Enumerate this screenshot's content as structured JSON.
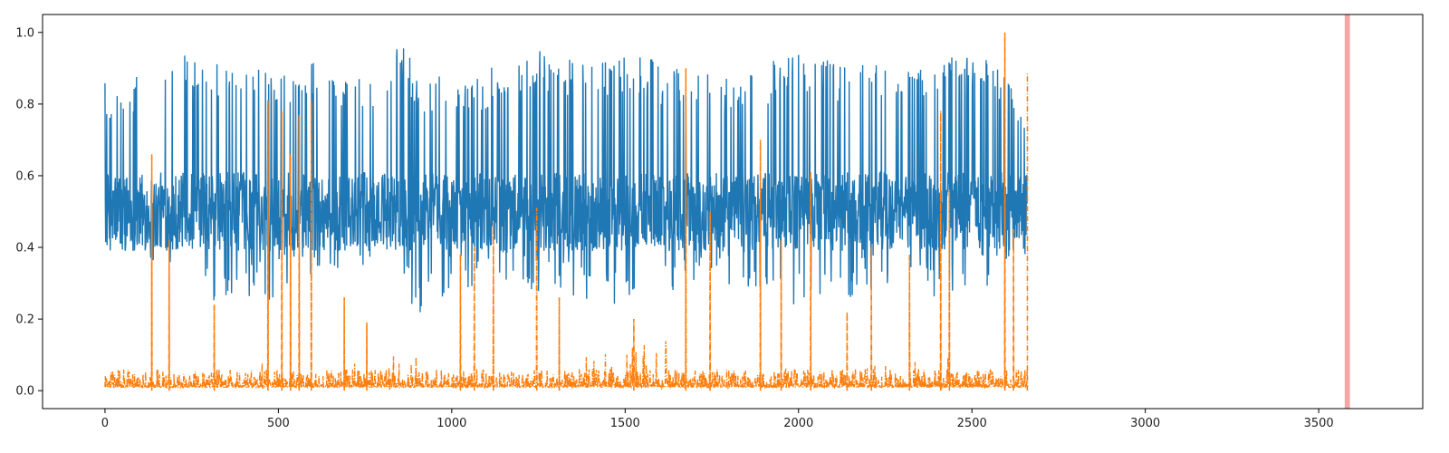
{
  "chart_data": {
    "type": "line",
    "title": "",
    "xlabel": "",
    "ylabel": "",
    "xlim": [
      -180,
      3800
    ],
    "ylim": [
      -0.05,
      1.05
    ],
    "x_ticks": [
      0,
      500,
      1000,
      1500,
      2000,
      2500,
      3000,
      3500
    ],
    "y_ticks": [
      0.0,
      0.2,
      0.4,
      0.6,
      0.8,
      1.0
    ],
    "x_tick_labels": [
      "0",
      "500",
      "1000",
      "1500",
      "2000",
      "2500",
      "3000",
      "3500"
    ],
    "y_tick_labels": [
      "0.0",
      "0.2",
      "0.4",
      "0.6",
      "0.8",
      "1.0"
    ],
    "grid": false,
    "legend": "none",
    "series": [
      {
        "color": "#1f77b4",
        "style": "solid",
        "n_points": 2660,
        "baseline": 0.5,
        "x": [
          0,
          100,
          200,
          300,
          400,
          500,
          600,
          700,
          800,
          840,
          900,
          1000,
          1100,
          1200,
          1300,
          1400,
          1500,
          1600,
          1700,
          1800,
          1900,
          2000,
          2100,
          2200,
          2300,
          2400,
          2500,
          2600,
          2660
        ],
        "upper": [
          0.86,
          0.89,
          0.95,
          0.93,
          0.92,
          0.88,
          0.92,
          0.87,
          0.93,
          1.0,
          0.9,
          0.88,
          0.9,
          0.95,
          0.95,
          0.92,
          0.95,
          0.92,
          0.9,
          0.88,
          0.91,
          0.96,
          0.93,
          0.93,
          0.93,
          0.94,
          0.93,
          0.93,
          0.82
        ],
        "lower": [
          0.38,
          0.34,
          0.36,
          0.23,
          0.24,
          0.25,
          0.33,
          0.34,
          0.36,
          0.36,
          0.2,
          0.28,
          0.29,
          0.27,
          0.27,
          0.23,
          0.24,
          0.25,
          0.28,
          0.29,
          0.25,
          0.22,
          0.23,
          0.27,
          0.26,
          0.24,
          0.27,
          0.3,
          0.39
        ]
      },
      {
        "color": "#ff7f0e",
        "style": "dashdot",
        "n_points": 2660,
        "baseline": 0.01,
        "spikes": [
          {
            "x": 135,
            "y": 0.66
          },
          {
            "x": 185,
            "y": 0.42
          },
          {
            "x": 315,
            "y": 0.24
          },
          {
            "x": 470,
            "y": 0.81
          },
          {
            "x": 510,
            "y": 0.78
          },
          {
            "x": 535,
            "y": 0.66
          },
          {
            "x": 560,
            "y": 0.77
          },
          {
            "x": 595,
            "y": 0.81
          },
          {
            "x": 690,
            "y": 0.26
          },
          {
            "x": 755,
            "y": 0.19
          },
          {
            "x": 1025,
            "y": 0.38
          },
          {
            "x": 1065,
            "y": 0.4
          },
          {
            "x": 1120,
            "y": 0.47
          },
          {
            "x": 1245,
            "y": 0.51
          },
          {
            "x": 1310,
            "y": 0.26
          },
          {
            "x": 1525,
            "y": 0.2
          },
          {
            "x": 1675,
            "y": 0.9
          },
          {
            "x": 1745,
            "y": 0.5
          },
          {
            "x": 1890,
            "y": 0.7
          },
          {
            "x": 1950,
            "y": 0.42
          },
          {
            "x": 2035,
            "y": 0.61
          },
          {
            "x": 2140,
            "y": 0.22
          },
          {
            "x": 2210,
            "y": 0.4
          },
          {
            "x": 2320,
            "y": 0.38
          },
          {
            "x": 2410,
            "y": 0.78
          },
          {
            "x": 2435,
            "y": 0.56
          },
          {
            "x": 2595,
            "y": 1.0
          },
          {
            "x": 2620,
            "y": 0.45
          },
          {
            "x": 2660,
            "y": 0.89
          }
        ],
        "noise_bumps": [
          {
            "x": 420,
            "y": 0.08
          },
          {
            "x": 700,
            "y": 0.1
          },
          {
            "x": 800,
            "y": 0.12
          },
          {
            "x": 850,
            "y": 0.1
          },
          {
            "x": 1440,
            "y": 0.12
          },
          {
            "x": 1560,
            "y": 0.14
          },
          {
            "x": 1800,
            "y": 0.06
          },
          {
            "x": 2210,
            "y": 0.07
          },
          {
            "x": 2380,
            "y": 0.14
          }
        ]
      }
    ],
    "vertical_band": {
      "x": [
        3575,
        3590
      ],
      "color": "#f08080"
    }
  }
}
